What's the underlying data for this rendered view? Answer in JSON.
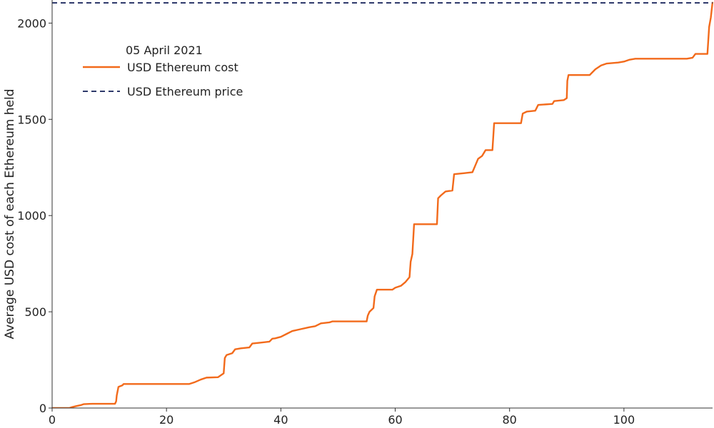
{
  "chart_data": {
    "type": "line",
    "title": "",
    "xlabel": "",
    "ylabel": "Average USD cost of each Ethereum held",
    "xlim": [
      0,
      115.5
    ],
    "ylim": [
      0,
      2120
    ],
    "x_ticks": [
      0,
      20,
      40,
      60,
      80,
      100
    ],
    "y_ticks": [
      0,
      500,
      1000,
      1500,
      2000
    ],
    "grid": false,
    "legend": {
      "placement": "top-left",
      "title": "05 April 2021",
      "entries": [
        "USD Ethereum cost",
        "USD Ethereum price"
      ]
    },
    "colors": {
      "cost": "#f26a1b",
      "price": "#2f3a6b"
    },
    "series": [
      {
        "name": "USD Ethereum cost",
        "style": "solid",
        "points": [
          [
            0,
            0
          ],
          [
            3,
            0
          ],
          [
            3.5,
            5
          ],
          [
            4.2,
            10
          ],
          [
            5,
            15
          ],
          [
            5.5,
            20
          ],
          [
            7,
            22
          ],
          [
            11,
            22
          ],
          [
            11.2,
            35
          ],
          [
            11.3,
            65
          ],
          [
            11.6,
            110
          ],
          [
            12.3,
            118
          ],
          [
            12.5,
            125
          ],
          [
            24,
            125
          ],
          [
            25,
            135
          ],
          [
            26,
            148
          ],
          [
            27,
            158
          ],
          [
            29,
            160
          ],
          [
            29.5,
            170
          ],
          [
            30,
            180
          ],
          [
            30.2,
            260
          ],
          [
            30.5,
            275
          ],
          [
            31.5,
            285
          ],
          [
            32,
            305
          ],
          [
            33,
            310
          ],
          [
            34.5,
            315
          ],
          [
            35,
            335
          ],
          [
            36.5,
            340
          ],
          [
            38,
            345
          ],
          [
            38.5,
            360
          ],
          [
            39,
            362
          ],
          [
            40,
            370
          ],
          [
            41,
            385
          ],
          [
            42,
            400
          ],
          [
            43.5,
            410
          ],
          [
            45,
            420
          ],
          [
            46,
            425
          ],
          [
            47,
            440
          ],
          [
            48.5,
            445
          ],
          [
            49,
            450
          ],
          [
            55,
            450
          ],
          [
            55.2,
            480
          ],
          [
            55.5,
            500
          ],
          [
            56.2,
            520
          ],
          [
            56.4,
            580
          ],
          [
            56.8,
            615
          ],
          [
            59.5,
            615
          ],
          [
            60,
            625
          ],
          [
            61,
            635
          ],
          [
            61.8,
            655
          ],
          [
            62.5,
            680
          ],
          [
            62.7,
            760
          ],
          [
            63,
            800
          ],
          [
            63.3,
            955
          ],
          [
            67.3,
            955
          ],
          [
            67.5,
            1090
          ],
          [
            68,
            1105
          ],
          [
            68.8,
            1125
          ],
          [
            70,
            1130
          ],
          [
            70.3,
            1215
          ],
          [
            72,
            1220
          ],
          [
            73.5,
            1225
          ],
          [
            74,
            1260
          ],
          [
            74.5,
            1295
          ],
          [
            75.2,
            1310
          ],
          [
            75.8,
            1340
          ],
          [
            77,
            1340
          ],
          [
            77.3,
            1480
          ],
          [
            82,
            1480
          ],
          [
            82.3,
            1530
          ],
          [
            83,
            1540
          ],
          [
            84.5,
            1545
          ],
          [
            85,
            1575
          ],
          [
            87.5,
            1580
          ],
          [
            87.8,
            1595
          ],
          [
            89.5,
            1600
          ],
          [
            90,
            1610
          ],
          [
            90.1,
            1700
          ],
          [
            90.3,
            1730
          ],
          [
            94,
            1730
          ],
          [
            95,
            1760
          ],
          [
            96,
            1780
          ],
          [
            97,
            1790
          ],
          [
            99,
            1795
          ],
          [
            100,
            1800
          ],
          [
            101,
            1810
          ],
          [
            102,
            1815
          ],
          [
            111,
            1815
          ],
          [
            112,
            1820
          ],
          [
            112.5,
            1840
          ],
          [
            114.6,
            1840
          ],
          [
            114.9,
            1980
          ],
          [
            115.2,
            2030
          ],
          [
            115.5,
            2110
          ]
        ]
      },
      {
        "name": "USD Ethereum price",
        "style": "dashed",
        "points": [
          [
            0,
            2105
          ],
          [
            115.5,
            2105
          ]
        ]
      }
    ]
  }
}
